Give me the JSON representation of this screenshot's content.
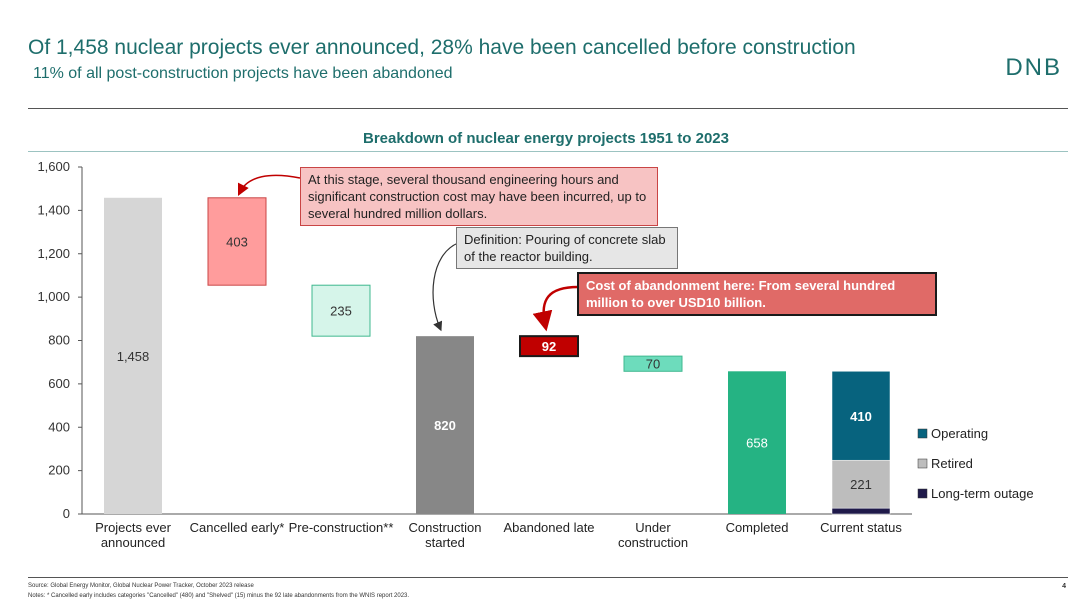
{
  "header": {
    "headline": "Of 1,458 nuclear projects ever announced, 28% have been cancelled before construction",
    "subhead": "11% of all post-construction projects have been abandoned",
    "brand": "DNB"
  },
  "chart_data": {
    "type": "waterfall-bar",
    "title": "Breakdown of nuclear energy projects 1951 to 2023",
    "ylim": [
      0,
      1600
    ],
    "yticks": [
      0,
      200,
      400,
      600,
      800,
      1000,
      1200,
      1400,
      1600
    ],
    "ytick_labels": [
      "0",
      "200",
      "400",
      "600",
      "800",
      "1,000",
      "1,200",
      "1,400",
      "1,600"
    ],
    "categories": [
      {
        "label": [
          "Projects ever",
          "announced"
        ],
        "base": 0,
        "value": 1458,
        "value_label": "1,458",
        "color": "#d6d6d6",
        "label_color": "#333333",
        "bold": false
      },
      {
        "label": [
          "Cancelled early*"
        ],
        "base": 1055,
        "value": 403,
        "value_label": "403",
        "color": "#ff9c9c",
        "label_color": "#333333",
        "bold": false,
        "border": "#c94545"
      },
      {
        "label": [
          "Pre-construction**"
        ],
        "base": 820,
        "value": 235,
        "value_label": "235",
        "color": "#d6f5ea",
        "label_color": "#333333",
        "bold": false,
        "border": "#3fb88f"
      },
      {
        "label": [
          "Construction",
          "started"
        ],
        "base": 0,
        "value": 820,
        "value_label": "820",
        "color": "#878787",
        "label_color": "#ffffff",
        "bold": true
      },
      {
        "label": [
          "Abandoned late"
        ],
        "base": 728,
        "value": 92,
        "value_label": "92",
        "color": "#c00000",
        "label_color": "#ffffff",
        "bold": true,
        "border": "#1a1a1a"
      },
      {
        "label": [
          "Under",
          "construction"
        ],
        "base": 658,
        "value": 70,
        "value_label": "70",
        "color": "#6ddcbc",
        "label_color": "#333333",
        "bold": false,
        "border": "#3fb88f"
      },
      {
        "label": [
          "Completed"
        ],
        "base": 0,
        "value": 658,
        "value_label": "658",
        "color": "#25b383",
        "label_color": "#ffffff",
        "bold": false
      }
    ],
    "stacked": {
      "label": [
        "Current status"
      ],
      "segments": [
        {
          "name": "Long-term outage",
          "value": 27,
          "value_label": "",
          "color": "#1f1a4a",
          "label_color": "#ffffff"
        },
        {
          "name": "Retired",
          "value": 221,
          "value_label": "221",
          "color": "#bdbdbd",
          "label_color": "#333333"
        },
        {
          "name": "Operating",
          "value": 410,
          "value_label": "410",
          "color": "#07637e",
          "label_color": "#ffffff",
          "bold": true
        }
      ]
    },
    "legend": [
      {
        "name": "Operating",
        "color": "#07637e"
      },
      {
        "name": "Retired",
        "color": "#bdbdbd"
      },
      {
        "name": "Long-term outage",
        "color": "#1f1a4a"
      }
    ],
    "legend_position": "right"
  },
  "annotations": {
    "cancelled": "At this stage, several thousand engineering hours and significant construction cost may have been incurred, up to several hundred million dollars.",
    "definition": "Definition: Pouring of concrete slab of the reactor building.",
    "abandonment": "Cost of abandonment here: From several hundred million to over USD10 billion."
  },
  "footer": {
    "source": "Source: Global Energy Monitor, Global Nuclear Power Tracker, October 2023 release",
    "notes": "Notes: * Cancelled early includes categories \"Cancelled\" (480) and \"Shelved\" (15) minus the 92 late abandonments from the WNIS report 2023.",
    "page_number": "4"
  },
  "colors": {
    "accent": "#1e6e6c",
    "axis": "#555555",
    "arrow_red": "#c00000",
    "arrow_dark": "#333333"
  }
}
